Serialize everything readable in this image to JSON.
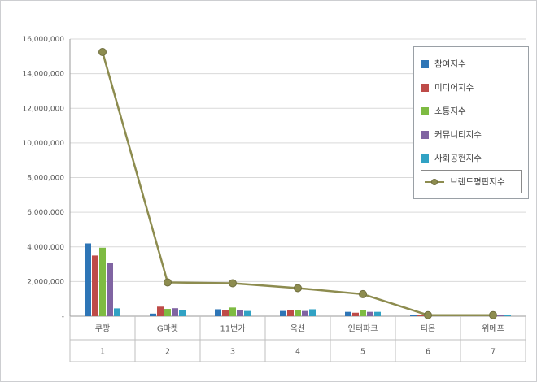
{
  "chart_data": {
    "type": "bar",
    "subtype": "grouped-bars-with-line-overlay",
    "title": "",
    "xlabel": "",
    "ylabel": "",
    "categories": [
      "쿠팡",
      "G마켓",
      "11번가",
      "옥션",
      "인터파크",
      "티몬",
      "위메프"
    ],
    "category_numbers": [
      "1",
      "2",
      "3",
      "4",
      "5",
      "6",
      "7"
    ],
    "ylim": [
      0,
      16000000
    ],
    "ytick_step": 2000000,
    "ytick_labels": [
      "-",
      "2,000,000",
      "4,000,000",
      "6,000,000",
      "8,000,000",
      "10,000,000",
      "12,000,000",
      "14,000,000",
      "16,000,000"
    ],
    "zero_label": "-",
    "grid": true,
    "legend_position": "right-top",
    "series": [
      {
        "name": "참여지수",
        "type": "bar",
        "color": "#2E75B6",
        "values": [
          4200000,
          150000,
          400000,
          300000,
          250000,
          60000,
          60000
        ]
      },
      {
        "name": "미디어지수",
        "type": "bar",
        "color": "#BE4B48",
        "values": [
          3500000,
          550000,
          350000,
          350000,
          200000,
          60000,
          50000
        ]
      },
      {
        "name": "소통지수",
        "type": "bar",
        "color": "#7EBB42",
        "values": [
          3950000,
          420000,
          500000,
          350000,
          350000,
          70000,
          60000
        ]
      },
      {
        "name": "커뮤니티지수",
        "type": "bar",
        "color": "#8064A2",
        "values": [
          3050000,
          460000,
          350000,
          300000,
          250000,
          50000,
          40000
        ]
      },
      {
        "name": "사회공헌지수",
        "type": "bar",
        "color": "#31A2C4",
        "values": [
          450000,
          350000,
          300000,
          400000,
          250000,
          60000,
          50000
        ]
      },
      {
        "name": "브랜드평판지수",
        "type": "line",
        "color": "#8D8C4F",
        "values": [
          15250000,
          1950000,
          1900000,
          1620000,
          1270000,
          60000,
          60000
        ]
      }
    ],
    "colors": {
      "grid": "#d9d9d9",
      "axis": "#9a9a9a",
      "axis_table": "#bfbfbf",
      "tick_text": "#595959",
      "category_text": "#404040"
    }
  }
}
